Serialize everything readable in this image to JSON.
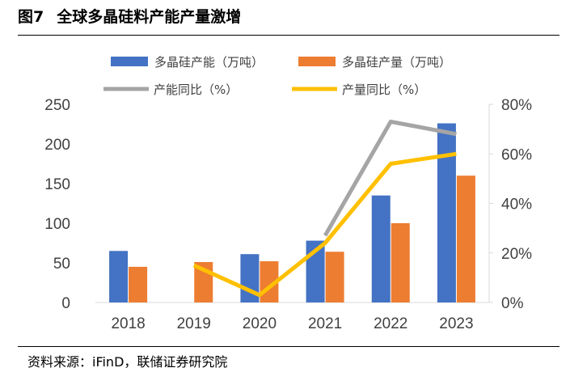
{
  "figure": {
    "label": "图7",
    "title": "全球多晶硅料产能产量激增",
    "source": "资料来源：iFinD，联储证券研究院"
  },
  "colors": {
    "capacity": "#4472C4",
    "production": "#ED7D31",
    "capacity_yoy": "#A5A5A5",
    "production_yoy": "#FFC000"
  },
  "chart_data": {
    "type": "bar",
    "categories": [
      "2018",
      "2019",
      "2020",
      "2021",
      "2022",
      "2023"
    ],
    "series": [
      {
        "name": "多晶硅产能（万吨）",
        "type": "bar",
        "axis": "left",
        "values": [
          65,
          null,
          61,
          78,
          135,
          226
        ]
      },
      {
        "name": "多晶硅产量（万吨）",
        "type": "bar",
        "axis": "left",
        "values": [
          45,
          51,
          52,
          64,
          100,
          160
        ]
      },
      {
        "name": "产能同比（%）",
        "type": "line",
        "axis": "right",
        "values": [
          null,
          null,
          null,
          27,
          73,
          68
        ]
      },
      {
        "name": "产量同比（%）",
        "type": "line",
        "axis": "right",
        "values": [
          null,
          15,
          3,
          24,
          56,
          60
        ]
      }
    ],
    "y_left": {
      "ylim": [
        0,
        250
      ],
      "ticks": [
        "0",
        "50",
        "100",
        "150",
        "200",
        "250"
      ]
    },
    "y_right": {
      "ylim": [
        0,
        80
      ],
      "ticks": [
        "0%",
        "20%",
        "40%",
        "60%",
        "80%"
      ]
    },
    "grid": false,
    "legend": "top"
  }
}
